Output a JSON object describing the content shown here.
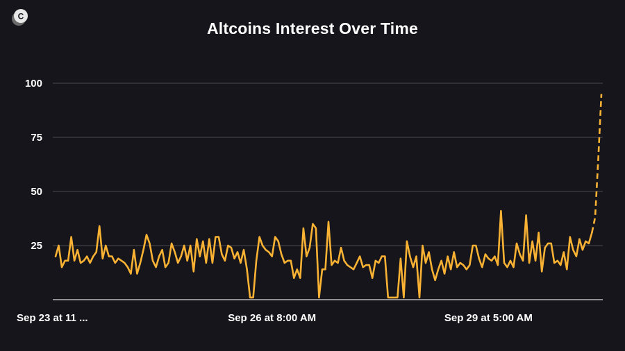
{
  "brand": {
    "logo_letter": "C"
  },
  "chart_data": {
    "type": "line",
    "title": "Altcoins Interest Over Time",
    "xlabel": "",
    "ylabel": "",
    "ylim": [
      0,
      100
    ],
    "yticks": [
      25,
      50,
      75,
      100
    ],
    "xtick_labels": [
      "Sep 23 at 11 ...",
      "Sep 26 at 8:00 AM",
      "Sep 29 at 5:00 AM"
    ],
    "xtick_indices": [
      0,
      69,
      138
    ],
    "line_color": "#f9b233",
    "grid_color": "#4a4950",
    "series": [
      {
        "name": "Altcoins",
        "values": [
          20,
          25,
          15,
          18,
          18,
          29,
          18,
          23,
          17,
          18,
          20,
          17,
          20,
          22,
          34,
          19,
          25,
          20,
          20,
          17,
          19,
          18,
          17,
          15,
          12,
          23,
          12,
          17,
          23,
          30,
          26,
          18,
          15,
          20,
          23,
          15,
          17,
          26,
          22,
          17,
          20,
          25,
          18,
          25,
          13,
          28,
          20,
          27,
          17,
          28,
          17,
          29,
          29,
          21,
          18,
          25,
          24,
          19,
          22,
          17,
          23,
          14,
          1,
          1,
          18,
          29,
          25,
          23,
          22,
          20,
          29,
          27,
          21,
          17,
          18,
          18,
          10,
          14,
          10,
          33,
          20,
          24,
          35,
          33,
          1,
          14,
          14,
          36,
          16,
          18,
          17,
          24,
          18,
          16,
          15,
          14,
          17,
          20,
          15,
          16,
          16,
          10,
          18,
          17,
          20,
          20,
          1,
          1,
          1,
          1,
          19,
          1,
          27,
          20,
          15,
          20,
          1,
          25,
          17,
          22,
          14,
          9,
          14,
          18,
          12,
          20,
          14,
          22,
          15,
          17,
          16,
          14,
          16,
          25,
          25,
          19,
          15,
          21,
          19,
          18,
          20,
          16,
          41,
          17,
          15,
          18,
          15,
          26,
          21,
          18,
          39,
          17,
          27,
          18,
          31,
          13,
          24,
          26,
          26,
          17,
          18,
          16,
          22,
          14,
          29,
          23,
          20,
          28,
          23,
          27,
          26,
          31,
          38,
          65,
          95
        ],
        "projected_from_index": 171
      }
    ]
  }
}
